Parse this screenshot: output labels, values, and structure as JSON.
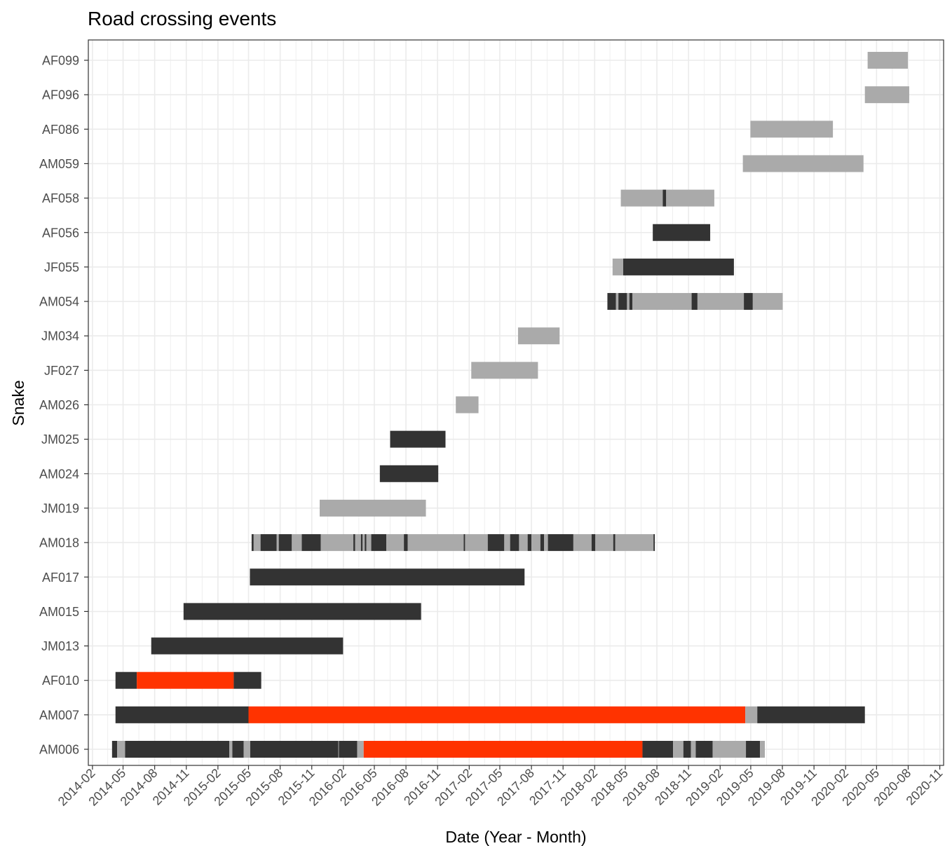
{
  "colors": {
    "background": "#ffffff",
    "grid": "#ebebeb",
    "panel_border": "#333333",
    "tick_text": "#4d4d4d",
    "status": {
      "dark": "#333333",
      "gray": "#aaaaaa",
      "red": "#ff3300"
    }
  },
  "chart_data": {
    "type": "gantt",
    "title": "Road crossing events",
    "xlabel": "Date (Year - Month)",
    "ylabel": "Snake",
    "xlim": [
      "2014-01-20",
      "2020-11-12"
    ],
    "grid": true,
    "legend": "none",
    "x_ticks": [
      "2014-02",
      "2014-05",
      "2014-08",
      "2014-11",
      "2015-02",
      "2015-05",
      "2015-08",
      "2015-11",
      "2016-02",
      "2016-05",
      "2016-08",
      "2016-11",
      "2017-02",
      "2017-05",
      "2017-08",
      "2017-11",
      "2018-02",
      "2018-05",
      "2018-08",
      "2018-11",
      "2019-02",
      "2019-05",
      "2019-08",
      "2019-11",
      "2020-02",
      "2020-05",
      "2020-08",
      "2020-11"
    ],
    "categories": [
      "AF099",
      "AF096",
      "AF086",
      "AM059",
      "AF058",
      "AF056",
      "JF055",
      "AM054",
      "JM034",
      "JF027",
      "AM026",
      "JM025",
      "AM024",
      "JM019",
      "AM018",
      "AF017",
      "AM015",
      "JM013",
      "AF010",
      "AM007",
      "AM006"
    ],
    "series": [
      {
        "snake": "AF099",
        "segments": [
          [
            "2020-04-05",
            "2020-07-31",
            "gray"
          ]
        ]
      },
      {
        "snake": "AF096",
        "segments": [
          [
            "2020-03-28",
            "2020-08-04",
            "gray"
          ]
        ]
      },
      {
        "snake": "AF086",
        "segments": [
          [
            "2019-04-30",
            "2019-12-26",
            "gray"
          ]
        ]
      },
      {
        "snake": "AM059",
        "segments": [
          [
            "2019-04-08",
            "2020-03-24",
            "gray"
          ]
        ]
      },
      {
        "snake": "AF058",
        "segments": [
          [
            "2018-04-18",
            "2018-08-18",
            "gray"
          ],
          [
            "2018-08-18",
            "2018-08-28",
            "dark"
          ],
          [
            "2018-08-28",
            "2019-01-15",
            "gray"
          ]
        ]
      },
      {
        "snake": "AF056",
        "segments": [
          [
            "2018-07-20",
            "2019-01-03",
            "dark"
          ]
        ]
      },
      {
        "snake": "JF055",
        "segments": [
          [
            "2018-03-25",
            "2018-04-25",
            "gray"
          ],
          [
            "2018-04-25",
            "2019-03-13",
            "dark"
          ]
        ]
      },
      {
        "snake": "AM054",
        "segments": [
          [
            "2018-03-10",
            "2018-04-04",
            "dark"
          ],
          [
            "2018-04-04",
            "2018-04-11",
            "gray"
          ],
          [
            "2018-04-11",
            "2018-05-06",
            "dark"
          ],
          [
            "2018-05-06",
            "2018-05-13",
            "gray"
          ],
          [
            "2018-05-13",
            "2018-05-22",
            "dark"
          ],
          [
            "2018-05-22",
            "2018-11-10",
            "gray"
          ],
          [
            "2018-11-10",
            "2018-11-27",
            "dark"
          ],
          [
            "2018-11-27",
            "2019-04-11",
            "gray"
          ],
          [
            "2019-04-11",
            "2019-05-07",
            "dark"
          ],
          [
            "2019-05-07",
            "2019-08-02",
            "gray"
          ]
        ]
      },
      {
        "snake": "JM034",
        "segments": [
          [
            "2017-06-23",
            "2017-10-22",
            "gray"
          ]
        ]
      },
      {
        "snake": "JF027",
        "segments": [
          [
            "2017-02-07",
            "2017-08-20",
            "gray"
          ]
        ]
      },
      {
        "snake": "AM026",
        "segments": [
          [
            "2016-12-24",
            "2017-02-28",
            "gray"
          ]
        ]
      },
      {
        "snake": "JM025",
        "segments": [
          [
            "2016-06-16",
            "2016-11-24",
            "dark"
          ]
        ]
      },
      {
        "snake": "AM024",
        "segments": [
          [
            "2016-05-17",
            "2016-11-03",
            "dark"
          ]
        ]
      },
      {
        "snake": "JM019",
        "segments": [
          [
            "2015-11-24",
            "2016-09-28",
            "gray"
          ]
        ]
      },
      {
        "snake": "AM018",
        "segments": [
          [
            "2015-05-10",
            "2015-05-16",
            "dark"
          ],
          [
            "2015-05-16",
            "2015-06-05",
            "gray"
          ],
          [
            "2015-06-05",
            "2015-07-22",
            "dark"
          ],
          [
            "2015-07-22",
            "2015-07-28",
            "gray"
          ],
          [
            "2015-07-28",
            "2015-09-04",
            "dark"
          ],
          [
            "2015-09-04",
            "2015-10-03",
            "gray"
          ],
          [
            "2015-10-03",
            "2015-11-27",
            "dark"
          ],
          [
            "2015-11-27",
            "2016-03-01",
            "gray"
          ],
          [
            "2016-03-01",
            "2016-03-06",
            "dark"
          ],
          [
            "2016-03-06",
            "2016-03-23",
            "gray"
          ],
          [
            "2016-03-23",
            "2016-03-28",
            "dark"
          ],
          [
            "2016-03-28",
            "2016-04-03",
            "gray"
          ],
          [
            "2016-04-03",
            "2016-04-08",
            "dark"
          ],
          [
            "2016-04-08",
            "2016-04-22",
            "gray"
          ],
          [
            "2016-04-22",
            "2016-06-05",
            "dark"
          ],
          [
            "2016-06-05",
            "2016-07-26",
            "gray"
          ],
          [
            "2016-07-26",
            "2016-08-06",
            "dark"
          ],
          [
            "2016-08-06",
            "2017-01-16",
            "gray"
          ],
          [
            "2017-01-16",
            "2017-01-20",
            "dark"
          ],
          [
            "2017-01-20",
            "2017-03-27",
            "gray"
          ],
          [
            "2017-03-27",
            "2017-05-14",
            "dark"
          ],
          [
            "2017-05-14",
            "2017-05-31",
            "gray"
          ],
          [
            "2017-05-31",
            "2017-06-26",
            "dark"
          ],
          [
            "2017-06-26",
            "2017-07-21",
            "gray"
          ],
          [
            "2017-07-21",
            "2017-08-01",
            "dark"
          ],
          [
            "2017-08-01",
            "2017-08-27",
            "gray"
          ],
          [
            "2017-08-27",
            "2017-09-07",
            "dark"
          ],
          [
            "2017-09-07",
            "2017-09-18",
            "gray"
          ],
          [
            "2017-09-18",
            "2017-12-01",
            "dark"
          ],
          [
            "2017-12-01",
            "2018-01-23",
            "gray"
          ],
          [
            "2018-01-23",
            "2018-02-03",
            "dark"
          ],
          [
            "2018-02-03",
            "2018-03-27",
            "gray"
          ],
          [
            "2018-03-27",
            "2018-04-02",
            "dark"
          ],
          [
            "2018-04-02",
            "2018-07-22",
            "gray"
          ],
          [
            "2018-07-22",
            "2018-07-26",
            "dark"
          ]
        ]
      },
      {
        "snake": "AF017",
        "segments": [
          [
            "2015-05-05",
            "2017-07-12",
            "dark"
          ]
        ]
      },
      {
        "snake": "AM015",
        "segments": [
          [
            "2014-10-24",
            "2016-09-14",
            "dark"
          ]
        ]
      },
      {
        "snake": "JM013",
        "segments": [
          [
            "2014-07-22",
            "2016-01-31",
            "dark"
          ]
        ]
      },
      {
        "snake": "AF010",
        "segments": [
          [
            "2014-04-09",
            "2014-06-10",
            "dark"
          ],
          [
            "2014-06-10",
            "2015-03-19",
            "red"
          ],
          [
            "2015-03-19",
            "2015-06-07",
            "dark"
          ]
        ]
      },
      {
        "snake": "AM007",
        "segments": [
          [
            "2014-04-09",
            "2015-05-01",
            "dark"
          ],
          [
            "2015-05-01",
            "2019-04-15",
            "red"
          ],
          [
            "2019-04-15",
            "2019-05-20",
            "gray"
          ],
          [
            "2019-05-20",
            "2020-03-28",
            "dark"
          ]
        ]
      },
      {
        "snake": "AM006",
        "segments": [
          [
            "2014-03-30",
            "2014-04-14",
            "dark"
          ],
          [
            "2014-04-14",
            "2014-05-07",
            "gray"
          ],
          [
            "2014-05-07",
            "2015-03-06",
            "dark"
          ],
          [
            "2015-03-06",
            "2015-03-15",
            "gray"
          ],
          [
            "2015-03-15",
            "2015-04-17",
            "dark"
          ],
          [
            "2015-04-17",
            "2015-05-06",
            "gray"
          ],
          [
            "2015-05-06",
            "2016-01-17",
            "dark"
          ],
          [
            "2016-01-17",
            "2016-01-19",
            "gray"
          ],
          [
            "2016-01-19",
            "2016-03-12",
            "dark"
          ],
          [
            "2016-03-12",
            "2016-03-31",
            "gray"
          ],
          [
            "2016-03-31",
            "2018-06-20",
            "red"
          ],
          [
            "2018-06-20",
            "2018-09-17",
            "dark"
          ],
          [
            "2018-09-17",
            "2018-10-17",
            "gray"
          ],
          [
            "2018-10-17",
            "2018-11-08",
            "dark"
          ],
          [
            "2018-11-08",
            "2018-11-22",
            "gray"
          ],
          [
            "2018-11-22",
            "2019-01-10",
            "dark"
          ],
          [
            "2019-01-10",
            "2019-04-17",
            "gray"
          ],
          [
            "2019-04-17",
            "2019-05-28",
            "dark"
          ],
          [
            "2019-05-28",
            "2019-06-11",
            "gray"
          ]
        ]
      }
    ]
  }
}
